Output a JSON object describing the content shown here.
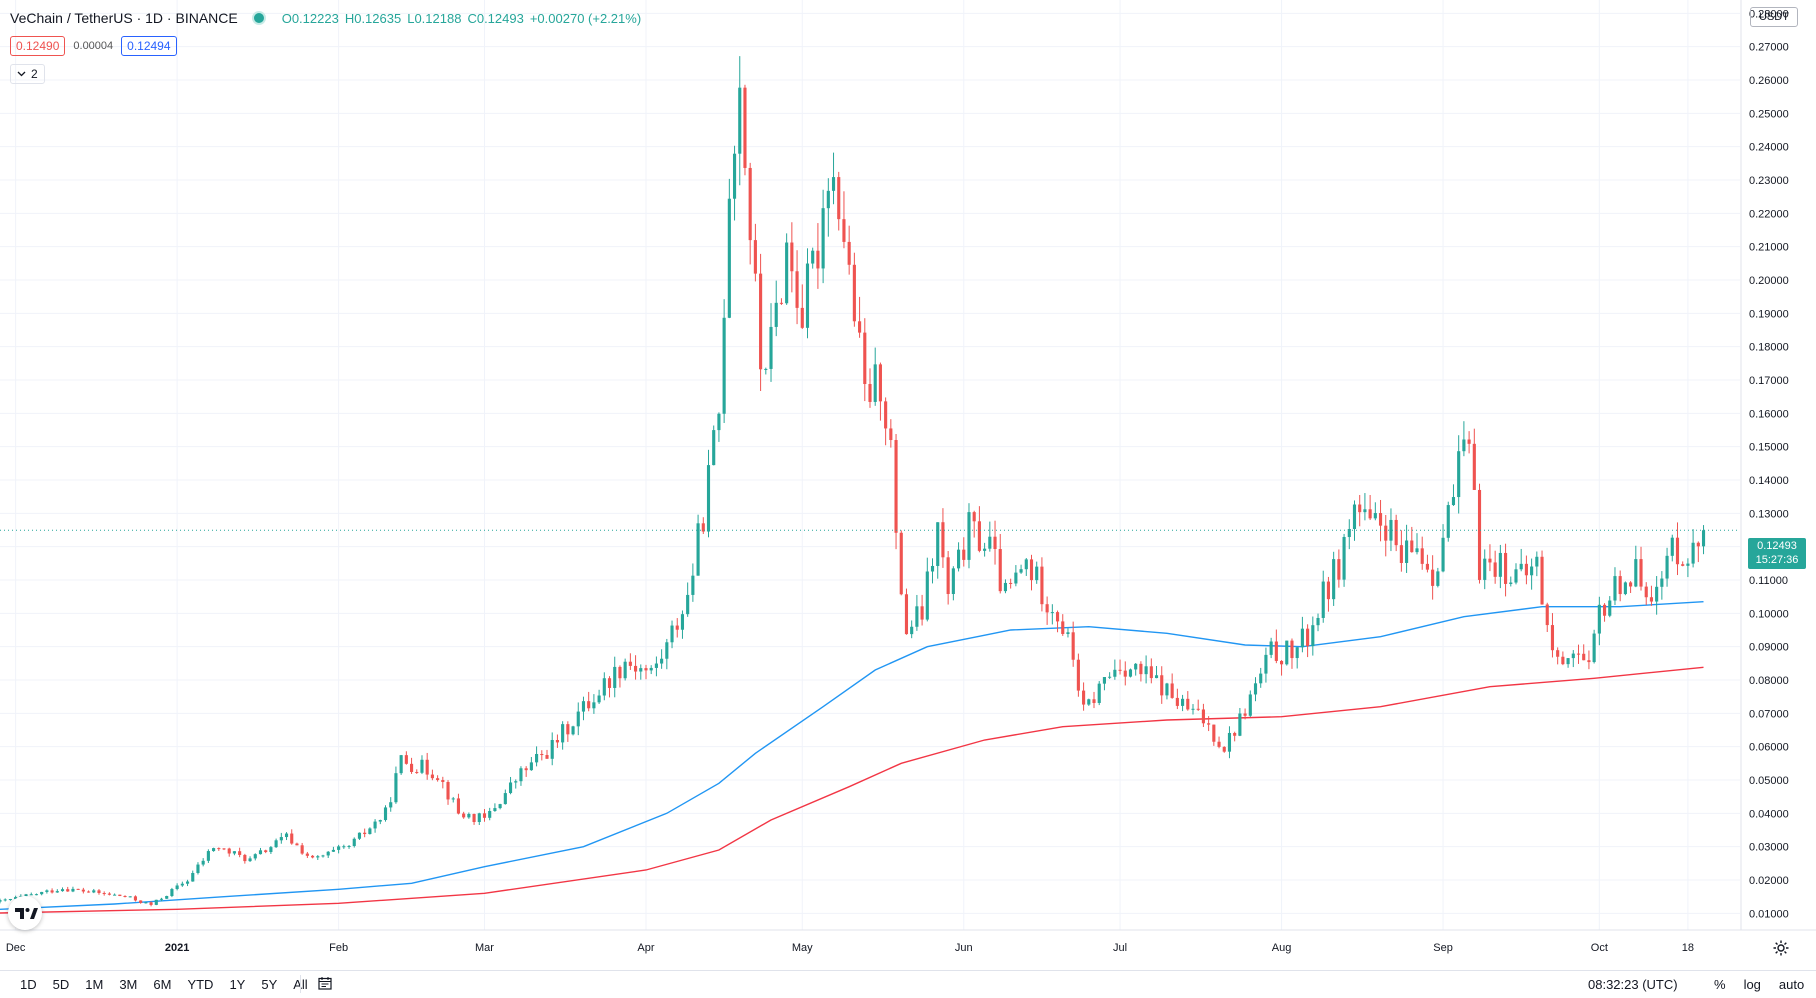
{
  "header": {
    "symbol": "VeChain / TetherUS · 1D · BINANCE",
    "open": "O0.12223",
    "high": "H0.12635",
    "low": "L0.12188",
    "close": "C0.12493",
    "change": "+0.00270 (+2.21%)",
    "bid": "0.12490",
    "spread": "0.00004",
    "ask": "0.12494",
    "indicators_count": "2"
  },
  "axis": {
    "currency": "USDT",
    "last_price": "0.12493",
    "countdown": "15:27:36"
  },
  "bottom": {
    "ranges": [
      "1D",
      "5D",
      "1M",
      "3M",
      "6M",
      "YTD",
      "1Y",
      "5Y",
      "All"
    ],
    "time": "08:32:23 (UTC)",
    "percent": "%",
    "log": "log",
    "auto": "auto"
  },
  "colors": {
    "up": "#26a69a",
    "down": "#ef5350",
    "ma_short": "#2196f3",
    "ma_long": "#f23645"
  },
  "chart_data": {
    "type": "candlestick",
    "title": "VeChain / TetherUS · 1D · BINANCE",
    "xlabel": "",
    "ylabel": "",
    "ylim": [
      0.005,
      0.284
    ],
    "yticks": [
      0.01,
      0.02,
      0.03,
      0.04,
      0.05,
      0.06,
      0.07,
      0.08,
      0.09,
      0.1,
      0.11,
      0.12,
      0.13,
      0.14,
      0.15,
      0.16,
      0.17,
      0.18,
      0.19,
      0.2,
      0.21,
      0.22,
      0.23,
      0.24,
      0.25,
      0.26,
      0.27,
      0.28
    ],
    "ytick_labels": [
      "0.01000",
      "0.02000",
      "0.03000",
      "0.04000",
      "0.05000",
      "0.06000",
      "0.07000",
      "0.08000",
      "0.09000",
      "0.10000",
      "0.11000",
      "0.12000",
      "0.13000",
      "0.14000",
      "0.15000",
      "0.16000",
      "0.17000",
      "0.18000",
      "0.19000",
      "0.20000",
      "0.21000",
      "0.22000",
      "0.23000",
      "0.24000",
      "0.25000",
      "0.26000",
      "0.27000",
      "0.28000"
    ],
    "xticks": [
      {
        "date": "2020-12-01",
        "label": "Dec"
      },
      {
        "date": "2021-01-01",
        "label": "2021"
      },
      {
        "date": "2021-02-01",
        "label": "Feb"
      },
      {
        "date": "2021-03-01",
        "label": "Mar"
      },
      {
        "date": "2021-04-01",
        "label": "Apr"
      },
      {
        "date": "2021-05-01",
        "label": "May"
      },
      {
        "date": "2021-06-01",
        "label": "Jun"
      },
      {
        "date": "2021-07-01",
        "label": "Jul"
      },
      {
        "date": "2021-08-01",
        "label": "Aug"
      },
      {
        "date": "2021-09-01",
        "label": "Sep"
      },
      {
        "date": "2021-10-01",
        "label": "Oct"
      },
      {
        "date": "2021-10-18",
        "label": "18"
      }
    ],
    "x_range": [
      "2020-11-28",
      "2021-10-28"
    ],
    "price_path": [
      [
        "2020-11-28",
        0.0135
      ],
      [
        "2020-12-10",
        0.0175
      ],
      [
        "2020-12-22",
        0.015
      ],
      [
        "2020-12-27",
        0.0125
      ],
      [
        "2021-01-03",
        0.02
      ],
      [
        "2021-01-08",
        0.03
      ],
      [
        "2021-01-15",
        0.026
      ],
      [
        "2021-01-22",
        0.033
      ],
      [
        "2021-01-27",
        0.026
      ],
      [
        "2021-02-03",
        0.03
      ],
      [
        "2021-02-10",
        0.04
      ],
      [
        "2021-02-13",
        0.056
      ],
      [
        "2021-02-20",
        0.052
      ],
      [
        "2021-02-24",
        0.04
      ],
      [
        "2021-03-01",
        0.038
      ],
      [
        "2021-03-08",
        0.052
      ],
      [
        "2021-03-14",
        0.06
      ],
      [
        "2021-03-18",
        0.068
      ],
      [
        "2021-03-22",
        0.075
      ],
      [
        "2021-03-28",
        0.086
      ],
      [
        "2021-04-02",
        0.082
      ],
      [
        "2021-04-05",
        0.09
      ],
      [
        "2021-04-09",
        0.105
      ],
      [
        "2021-04-12",
        0.13
      ],
      [
        "2021-04-15",
        0.16
      ],
      [
        "2021-04-17",
        0.23
      ],
      [
        "2021-04-19",
        0.26
      ],
      [
        "2021-04-21",
        0.215
      ],
      [
        "2021-04-23",
        0.175
      ],
      [
        "2021-04-25",
        0.18
      ],
      [
        "2021-04-28",
        0.21
      ],
      [
        "2021-05-01",
        0.19
      ],
      [
        "2021-05-04",
        0.21
      ],
      [
        "2021-05-06",
        0.235
      ],
      [
        "2021-05-08",
        0.225
      ],
      [
        "2021-05-11",
        0.19
      ],
      [
        "2021-05-13",
        0.165
      ],
      [
        "2021-05-16",
        0.17
      ],
      [
        "2021-05-18",
        0.15
      ],
      [
        "2021-05-19",
        0.12
      ],
      [
        "2021-05-21",
        0.095
      ],
      [
        "2021-05-24",
        0.1
      ],
      [
        "2021-05-27",
        0.125
      ],
      [
        "2021-05-29",
        0.105
      ],
      [
        "2021-06-02",
        0.125
      ],
      [
        "2021-06-06",
        0.12
      ],
      [
        "2021-06-09",
        0.105
      ],
      [
        "2021-06-13",
        0.115
      ],
      [
        "2021-06-16",
        0.107
      ],
      [
        "2021-06-19",
        0.1
      ],
      [
        "2021-06-22",
        0.087
      ],
      [
        "2021-06-24",
        0.07
      ],
      [
        "2021-06-28",
        0.08
      ],
      [
        "2021-07-01",
        0.085
      ],
      [
        "2021-07-05",
        0.082
      ],
      [
        "2021-07-09",
        0.078
      ],
      [
        "2021-07-13",
        0.072
      ],
      [
        "2021-07-17",
        0.068
      ],
      [
        "2021-07-21",
        0.06
      ],
      [
        "2021-07-24",
        0.068
      ],
      [
        "2021-07-27",
        0.078
      ],
      [
        "2021-07-30",
        0.088
      ],
      [
        "2021-08-03",
        0.088
      ],
      [
        "2021-08-06",
        0.093
      ],
      [
        "2021-08-09",
        0.105
      ],
      [
        "2021-08-12",
        0.115
      ],
      [
        "2021-08-15",
        0.132
      ],
      [
        "2021-08-18",
        0.125
      ],
      [
        "2021-08-21",
        0.127
      ],
      [
        "2021-08-24",
        0.115
      ],
      [
        "2021-08-27",
        0.12
      ],
      [
        "2021-08-30",
        0.112
      ],
      [
        "2021-09-03",
        0.135
      ],
      [
        "2021-09-05",
        0.15
      ],
      [
        "2021-09-07",
        0.14
      ],
      [
        "2021-09-08",
        0.115
      ],
      [
        "2021-09-12",
        0.115
      ],
      [
        "2021-09-16",
        0.11
      ],
      [
        "2021-09-19",
        0.115
      ],
      [
        "2021-09-21",
        0.095
      ],
      [
        "2021-09-23",
        0.085
      ],
      [
        "2021-09-26",
        0.09
      ],
      [
        "2021-09-29",
        0.082
      ],
      [
        "2021-10-01",
        0.1
      ],
      [
        "2021-10-05",
        0.11
      ],
      [
        "2021-10-09",
        0.112
      ],
      [
        "2021-10-12",
        0.105
      ],
      [
        "2021-10-15",
        0.12
      ],
      [
        "2021-10-19",
        0.118
      ],
      [
        "2021-10-21",
        0.12493
      ]
    ],
    "series": [
      {
        "name": "",
        "color": "#2196f3",
        "points": [
          [
            "2020-11-28",
            0.0112
          ],
          [
            "2020-12-20",
            0.0128
          ],
          [
            "2021-01-10",
            0.015
          ],
          [
            "2021-02-01",
            0.0172
          ],
          [
            "2021-02-15",
            0.019
          ],
          [
            "2021-03-01",
            0.024
          ],
          [
            "2021-03-20",
            0.03
          ],
          [
            "2021-04-05",
            0.04
          ],
          [
            "2021-04-15",
            0.049
          ],
          [
            "2021-04-22",
            0.058
          ],
          [
            "2021-05-05",
            0.072
          ],
          [
            "2021-05-15",
            0.083
          ],
          [
            "2021-05-25",
            0.09
          ],
          [
            "2021-06-10",
            0.095
          ],
          [
            "2021-06-25",
            0.096
          ],
          [
            "2021-07-10",
            0.094
          ],
          [
            "2021-07-25",
            0.0905
          ],
          [
            "2021-08-05",
            0.09
          ],
          [
            "2021-08-20",
            0.093
          ],
          [
            "2021-09-05",
            0.099
          ],
          [
            "2021-09-20",
            0.102
          ],
          [
            "2021-10-05",
            0.102
          ],
          [
            "2021-10-21",
            0.1035
          ]
        ]
      },
      {
        "name": "",
        "color": "#f23645",
        "points": [
          [
            "2020-11-28",
            0.0101
          ],
          [
            "2021-01-01",
            0.0112
          ],
          [
            "2021-02-01",
            0.013
          ],
          [
            "2021-03-01",
            0.016
          ],
          [
            "2021-04-01",
            0.023
          ],
          [
            "2021-04-15",
            0.029
          ],
          [
            "2021-04-25",
            0.038
          ],
          [
            "2021-05-10",
            0.048
          ],
          [
            "2021-05-20",
            0.055
          ],
          [
            "2021-06-05",
            0.062
          ],
          [
            "2021-06-20",
            0.066
          ],
          [
            "2021-07-10",
            0.068
          ],
          [
            "2021-08-01",
            0.069
          ],
          [
            "2021-08-20",
            0.072
          ],
          [
            "2021-09-10",
            0.078
          ],
          [
            "2021-09-30",
            0.0805
          ],
          [
            "2021-10-21",
            0.0838
          ]
        ]
      }
    ],
    "last_price": 0.12493
  }
}
